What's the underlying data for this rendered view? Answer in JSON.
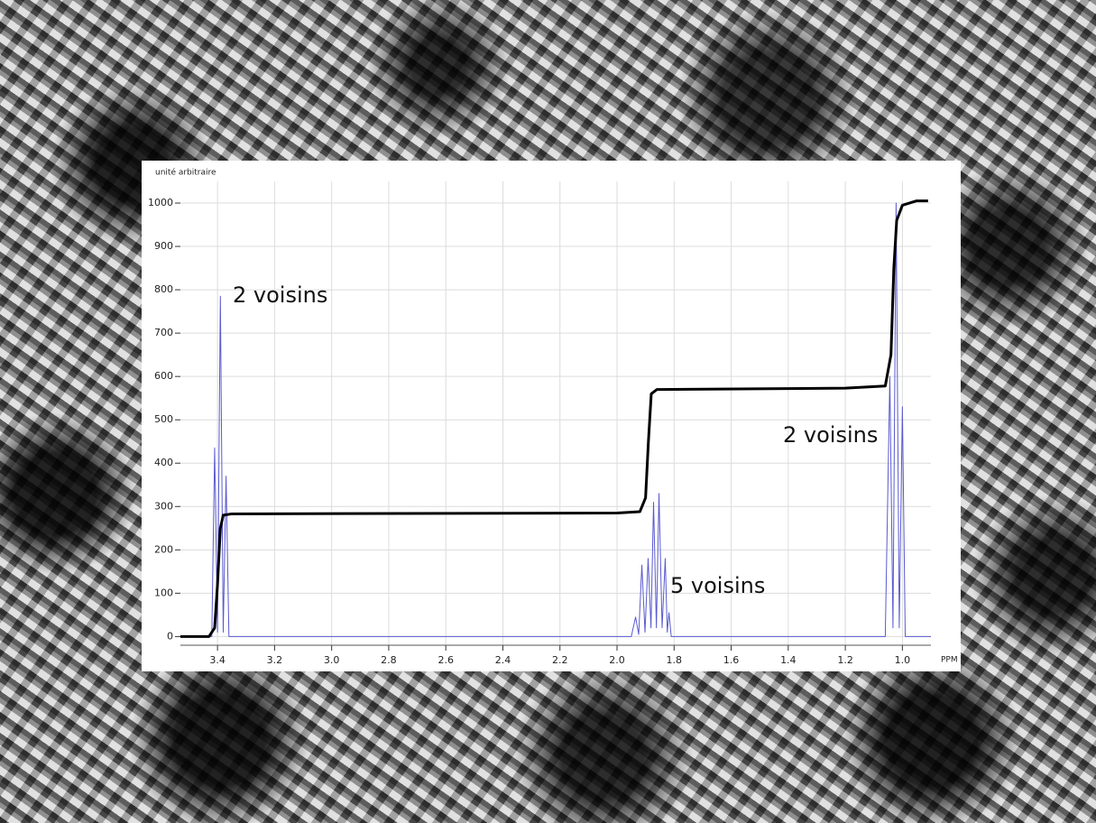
{
  "chart_data": {
    "type": "line",
    "y_axis_label": "unité arbitraire",
    "x_axis_label": "PPM",
    "annotations": [
      "2 voisins",
      "5 voisins",
      "2 voisins"
    ],
    "xlim": [
      3.53,
      0.9
    ],
    "xticks": [
      3.4,
      3.2,
      {
        "value": 3,
        "label": "3.0"
      },
      2.8,
      2.6,
      2.4,
      2.2,
      {
        "value": 2,
        "label": "2.0"
      },
      1.8,
      1.6,
      1.4,
      1.2,
      {
        "value": 1,
        "label": "1.0"
      }
    ],
    "ylim": [
      -20,
      1050
    ],
    "yticks": [
      0,
      100,
      200,
      300,
      400,
      500,
      600,
      700,
      800,
      900,
      1000
    ],
    "grid": true,
    "series": [
      {
        "color": "#5a5ad0",
        "x": [
          3.53,
          3.42,
          3.41,
          3.4,
          3.39,
          3.38,
          3.37,
          3.36,
          1.95,
          1.935,
          1.924,
          1.913,
          1.902,
          1.891,
          1.881,
          1.872,
          1.862,
          1.853,
          1.842,
          1.831,
          1.824,
          1.818,
          1.81,
          1.06,
          1.044,
          1.033,
          1.022,
          1.011,
          1.0,
          0.99,
          0.9
        ],
        "values": [
          0,
          0,
          435,
          10,
          785,
          10,
          370,
          0,
          0,
          45,
          5,
          165,
          10,
          180,
          20,
          310,
          20,
          330,
          20,
          180,
          10,
          55,
          0,
          0,
          600,
          20,
          1000,
          20,
          530,
          0,
          0
        ]
      },
      {
        "color": "#000000",
        "x": [
          3.53,
          3.43,
          3.41,
          3.4,
          3.39,
          3.38,
          3.35,
          2.0,
          1.92,
          1.9,
          1.89,
          1.88,
          1.86,
          1.2,
          1.06,
          1.04,
          1.03,
          1.02,
          1.0,
          0.95,
          0.91
        ],
        "values": [
          0,
          0,
          20,
          120,
          250,
          280,
          283,
          285,
          288,
          320,
          450,
          560,
          570,
          573,
          578,
          650,
          850,
          960,
          995,
          1005,
          1005
        ]
      }
    ]
  }
}
